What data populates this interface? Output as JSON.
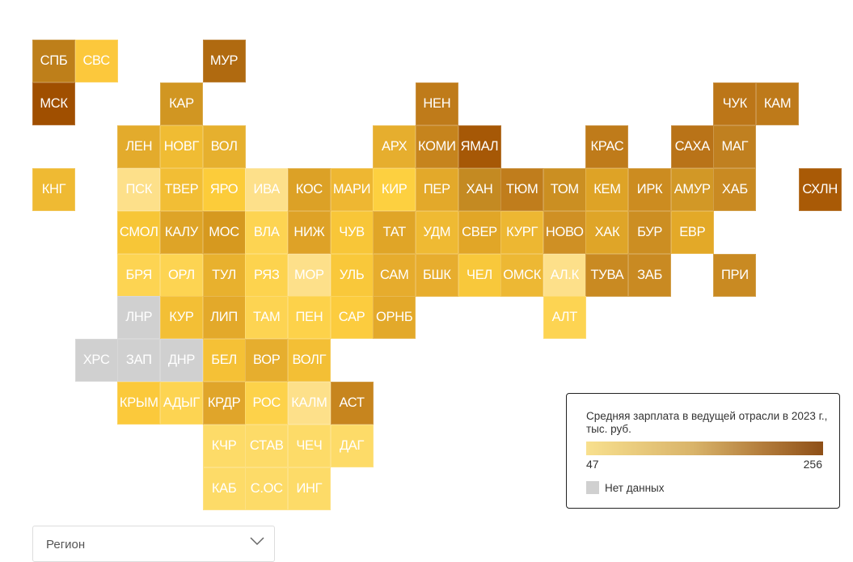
{
  "map": {
    "no_data_color": "#d0d0d0",
    "regions": [
      {
        "code": "СПБ",
        "color": "#be7f1a"
      },
      {
        "code": "СВС",
        "color": "#fcc83c"
      },
      {
        "code": "МУР",
        "color": "#b06a10"
      },
      {
        "code": "МСК",
        "color": "#a04f00"
      },
      {
        "code": "КАР",
        "color": "#d19622"
      },
      {
        "code": "НЕН",
        "color": "#bf7b1a"
      },
      {
        "code": "ЧУК",
        "color": "#bc7618"
      },
      {
        "code": "КАМ",
        "color": "#be7a1a"
      },
      {
        "code": "ЛЕН",
        "color": "#e3ab2c"
      },
      {
        "code": "НОВГ",
        "color": "#f0bc33"
      },
      {
        "code": "ВОЛ",
        "color": "#e6b02e"
      },
      {
        "code": "АРХ",
        "color": "#e6ae2e"
      },
      {
        "code": "КОМИ",
        "color": "#c6841d"
      },
      {
        "code": "ЯМАЛ",
        "color": "#a65806"
      },
      {
        "code": "КРАС",
        "color": "#bf7b1a"
      },
      {
        "code": "САХА",
        "color": "#b97318"
      },
      {
        "code": "МАГ",
        "color": "#c08020"
      },
      {
        "code": "КНГ",
        "color": "#efba33"
      },
      {
        "code": "ПСК",
        "color": "#fde08a"
      },
      {
        "code": "ТВЕР",
        "color": "#f2be35"
      },
      {
        "code": "ЯРО",
        "color": "#fccc3a"
      },
      {
        "code": "ИВА",
        "color": "#fde08a"
      },
      {
        "code": "КОС",
        "color": "#dca126"
      },
      {
        "code": "МАРИ",
        "color": "#eeb732"
      },
      {
        "code": "КИР",
        "color": "#fdd040"
      },
      {
        "code": "ПЕР",
        "color": "#e3a92a"
      },
      {
        "code": "ХАН",
        "color": "#c48a22"
      },
      {
        "code": "ТЮМ",
        "color": "#c07d1c"
      },
      {
        "code": "ТОМ",
        "color": "#cb8f22"
      },
      {
        "code": "КЕМ",
        "color": "#dea326"
      },
      {
        "code": "ИРК",
        "color": "#cc8c20"
      },
      {
        "code": "АМУР",
        "color": "#d29826"
      },
      {
        "code": "ХАБ",
        "color": "#c98a22"
      },
      {
        "code": "СХЛН",
        "color": "#a95a06"
      },
      {
        "code": "СМОЛ",
        "color": "#f7c637"
      },
      {
        "code": "КАЛУ",
        "color": "#dea427"
      },
      {
        "code": "МОС",
        "color": "#d6991f"
      },
      {
        "code": "ВЛА",
        "color": "#fdd452"
      },
      {
        "code": "НИЖ",
        "color": "#dea227"
      },
      {
        "code": "ЧУВ",
        "color": "#f8c638"
      },
      {
        "code": "ТАТ",
        "color": "#e0a527"
      },
      {
        "code": "УДМ",
        "color": "#efba33"
      },
      {
        "code": "СВЕР",
        "color": "#e1a627"
      },
      {
        "code": "КУРГ",
        "color": "#edb732"
      },
      {
        "code": "НОВО",
        "color": "#cf9024"
      },
      {
        "code": "ХАК",
        "color": "#dfa528"
      },
      {
        "code": "БУР",
        "color": "#cc8e22"
      },
      {
        "code": "ЕВР",
        "color": "#e3a928"
      },
      {
        "code": "БРЯ",
        "color": "#fdd452"
      },
      {
        "code": "ОРЛ",
        "color": "#fdd452"
      },
      {
        "code": "ТУЛ",
        "color": "#e8b12e"
      },
      {
        "code": "РЯЗ",
        "color": "#fdd34e"
      },
      {
        "code": "МОР",
        "color": "#fde08a"
      },
      {
        "code": "УЛЬ",
        "color": "#f9c83a"
      },
      {
        "code": "САМ",
        "color": "#e6ac2d"
      },
      {
        "code": "БШК",
        "color": "#e7ad2e"
      },
      {
        "code": "ЧЕЛ",
        "color": "#f8c83b"
      },
      {
        "code": "ОМСК",
        "color": "#edb834"
      },
      {
        "code": "АЛ.К",
        "color": "#fde08a"
      },
      {
        "code": "ТУВА",
        "color": "#c98a22"
      },
      {
        "code": "ЗАБ",
        "color": "#c98a22"
      },
      {
        "code": "ПРИ",
        "color": "#c98a22"
      },
      {
        "code": "ЛНР",
        "color": "#d0d0d0"
      },
      {
        "code": "КУР",
        "color": "#f3bf35"
      },
      {
        "code": "ЛИП",
        "color": "#e3a92a"
      },
      {
        "code": "ТАМ",
        "color": "#fdd452"
      },
      {
        "code": "ПЕН",
        "color": "#fdd24a"
      },
      {
        "code": "САР",
        "color": "#fccc3e"
      },
      {
        "code": "ОРНБ",
        "color": "#e3a92a"
      },
      {
        "code": "АЛТ",
        "color": "#fdd452"
      },
      {
        "code": "ХРС",
        "color": "#d0d0d0"
      },
      {
        "code": "ЗАП",
        "color": "#d0d0d0"
      },
      {
        "code": "ДНР",
        "color": "#d0d0d0"
      },
      {
        "code": "БЕЛ",
        "color": "#f5c136"
      },
      {
        "code": "ВОР",
        "color": "#e6ae2e"
      },
      {
        "code": "ВОЛГ",
        "color": "#f3bf35"
      },
      {
        "code": "КРЫМ",
        "color": "#fbc93b"
      },
      {
        "code": "АДЫГ",
        "color": "#fdd452"
      },
      {
        "code": "КРДР",
        "color": "#e0a52a"
      },
      {
        "code": "РОС",
        "color": "#fdd24a"
      },
      {
        "code": "КАЛМ",
        "color": "#fde08a"
      },
      {
        "code": "АСТ",
        "color": "#c7851e"
      },
      {
        "code": "КЧР",
        "color": "#fddb68"
      },
      {
        "code": "СТАВ",
        "color": "#fddb68"
      },
      {
        "code": "ЧЕЧ",
        "color": "#fddb68"
      },
      {
        "code": "ДАГ",
        "color": "#fddb68"
      },
      {
        "code": "КАБ",
        "color": "#fddb68"
      },
      {
        "code": "С.ОС",
        "color": "#fddb68"
      },
      {
        "code": "ИНГ",
        "color": "#fddb68"
      }
    ]
  },
  "legend": {
    "title": "Средняя зарплата в ведущей отрасли в 2023 г., тыс. руб.",
    "min": "47",
    "max": "256",
    "no_data": "Нет данных",
    "gradient_colors": [
      "#f8e08e",
      "#8e4f17"
    ]
  },
  "filter": {
    "placeholder": "Регион"
  }
}
